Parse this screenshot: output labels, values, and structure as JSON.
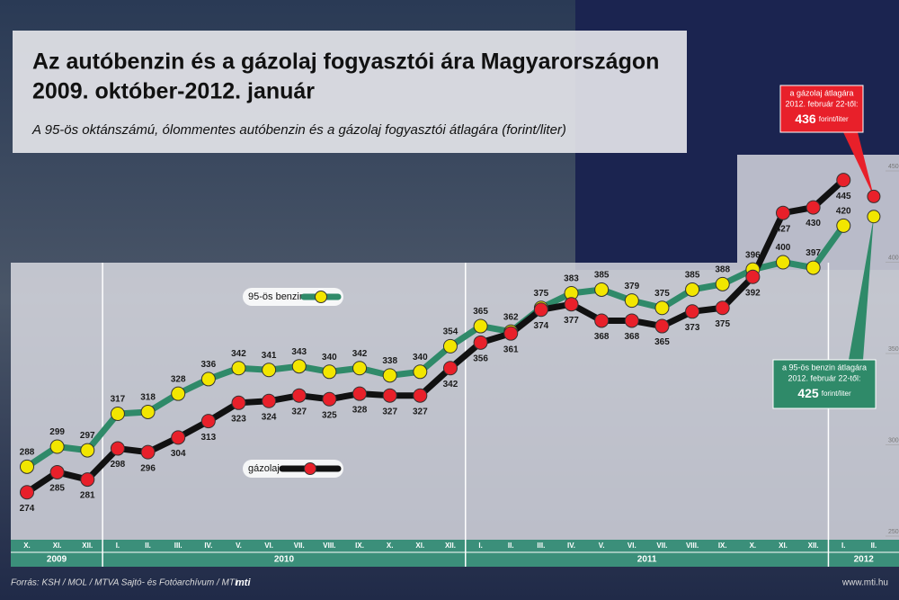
{
  "chart_data": {
    "type": "line",
    "title": [
      "Az autóbenzin és a gázolaj fogyasztói ára Magyarországon",
      "2009. október-2012. január"
    ],
    "subtitle": "A 95-ös oktánszámú, ólommentes autóbenzin és a gázolaj fogyasztói átlagára (forint/liter)",
    "categories": [
      "X.",
      "XI.",
      "XII.",
      "I.",
      "II.",
      "III.",
      "IV.",
      "V.",
      "VI.",
      "VII.",
      "VIII.",
      "IX.",
      "X.",
      "XI.",
      "XII.",
      "I.",
      "II.",
      "III.",
      "IV.",
      "V.",
      "VI.",
      "VII.",
      "VIII.",
      "IX.",
      "X.",
      "XI.",
      "XII.",
      "I.",
      "II."
    ],
    "years": [
      "2009",
      "2010",
      "2011",
      "2012"
    ],
    "series": [
      {
        "name": "95-ös benzin",
        "color": "#2f8a69",
        "marker": "#f2e600",
        "values": [
          288,
          299,
          297,
          317,
          318,
          328,
          336,
          342,
          341,
          343,
          340,
          342,
          338,
          340,
          354,
          365,
          362,
          375,
          383,
          385,
          379,
          375,
          385,
          388,
          396,
          400,
          397,
          420,
          null
        ]
      },
      {
        "name": "gázolaj",
        "color": "#111111",
        "marker": "#e8202a",
        "values": [
          274,
          285,
          281,
          298,
          296,
          304,
          313,
          323,
          324,
          327,
          325,
          328,
          327,
          327,
          342,
          356,
          361,
          374,
          377,
          368,
          368,
          365,
          373,
          375,
          392,
          427,
          430,
          445,
          null
        ]
      }
    ],
    "callouts": [
      {
        "text": "a gázolaj átlagára",
        "date": "2012. február 22-től:",
        "value": 436,
        "unit": "forint/liter",
        "color": "#e8202a"
      },
      {
        "text": "a 95-ös benzin átlagára",
        "date": "2012. február 22-től:",
        "value": 425,
        "unit": "forint/liter",
        "color": "#2f8a69"
      }
    ],
    "ylim": [
      250,
      450
    ],
    "yticks": [
      250,
      300,
      350,
      400,
      450
    ],
    "source": "Forrás: KSH / MOL / MTVA Sajtó- és Fotóarchívum / MTI",
    "logo": "mti",
    "url": "www.mti.hu"
  }
}
